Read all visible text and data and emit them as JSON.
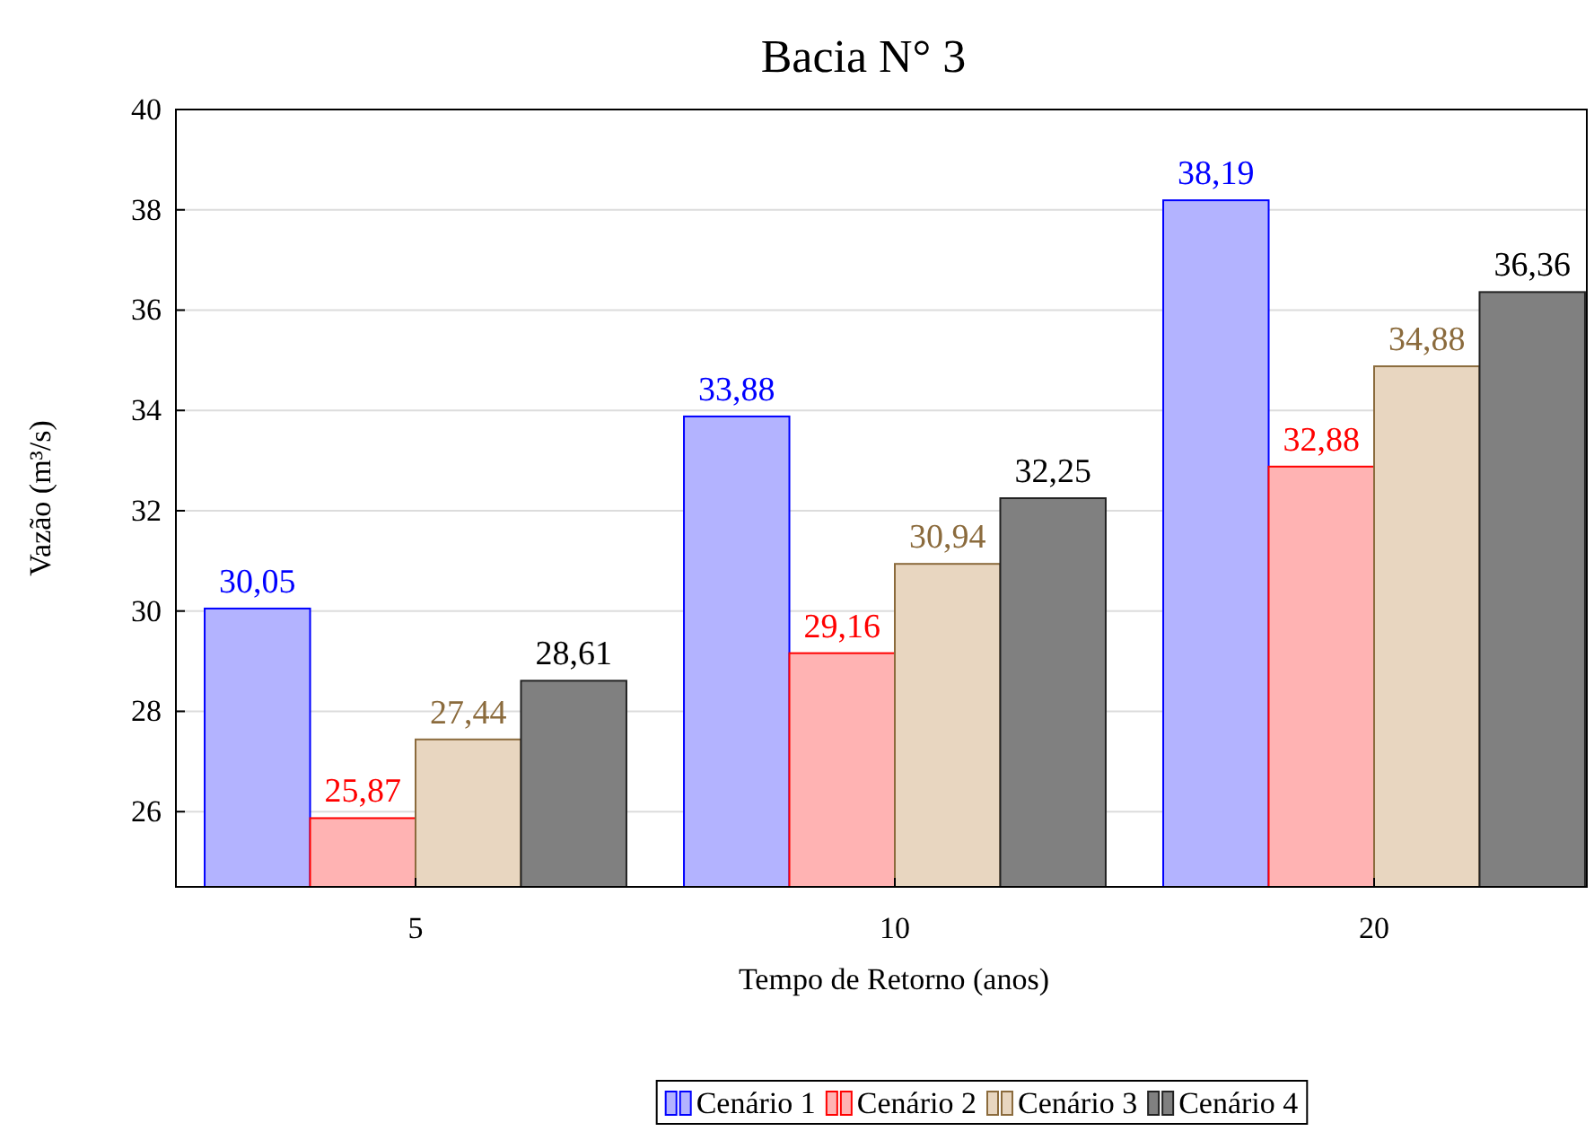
{
  "chart_data": {
    "type": "bar",
    "title": "Bacia N° 3",
    "xlabel": "Tempo de Retorno (anos)",
    "ylabel": "Vazão (m³/s)",
    "categories": [
      "5",
      "10",
      "20"
    ],
    "series": [
      {
        "name": "Cenário 1",
        "color": "#b3b3ff",
        "values": [
          30.05,
          33.88,
          38.19
        ],
        "value_labels": [
          "30,05",
          "33,88",
          "38,19"
        ]
      },
      {
        "name": "Cenário 2",
        "color": "#ffb3b3",
        "values": [
          25.87,
          29.16,
          32.88
        ],
        "value_labels": [
          "25,87",
          "29,16",
          "32,88"
        ]
      },
      {
        "name": "Cenário 3",
        "color": "#e8d6c0",
        "values": [
          27.44,
          30.94,
          34.88
        ],
        "value_labels": [
          "27,44",
          "30,94",
          "34,88"
        ]
      },
      {
        "name": "Cenário 4",
        "color": "#808080",
        "values": [
          28.61,
          32.25,
          36.36
        ],
        "value_labels": [
          "28,61",
          "32,25",
          "36,36"
        ]
      }
    ],
    "ylim": [
      24.5,
      40
    ],
    "yticks": [
      26,
      28,
      30,
      32,
      34,
      36,
      38,
      40
    ],
    "grid": "y",
    "legend": "bottom"
  }
}
